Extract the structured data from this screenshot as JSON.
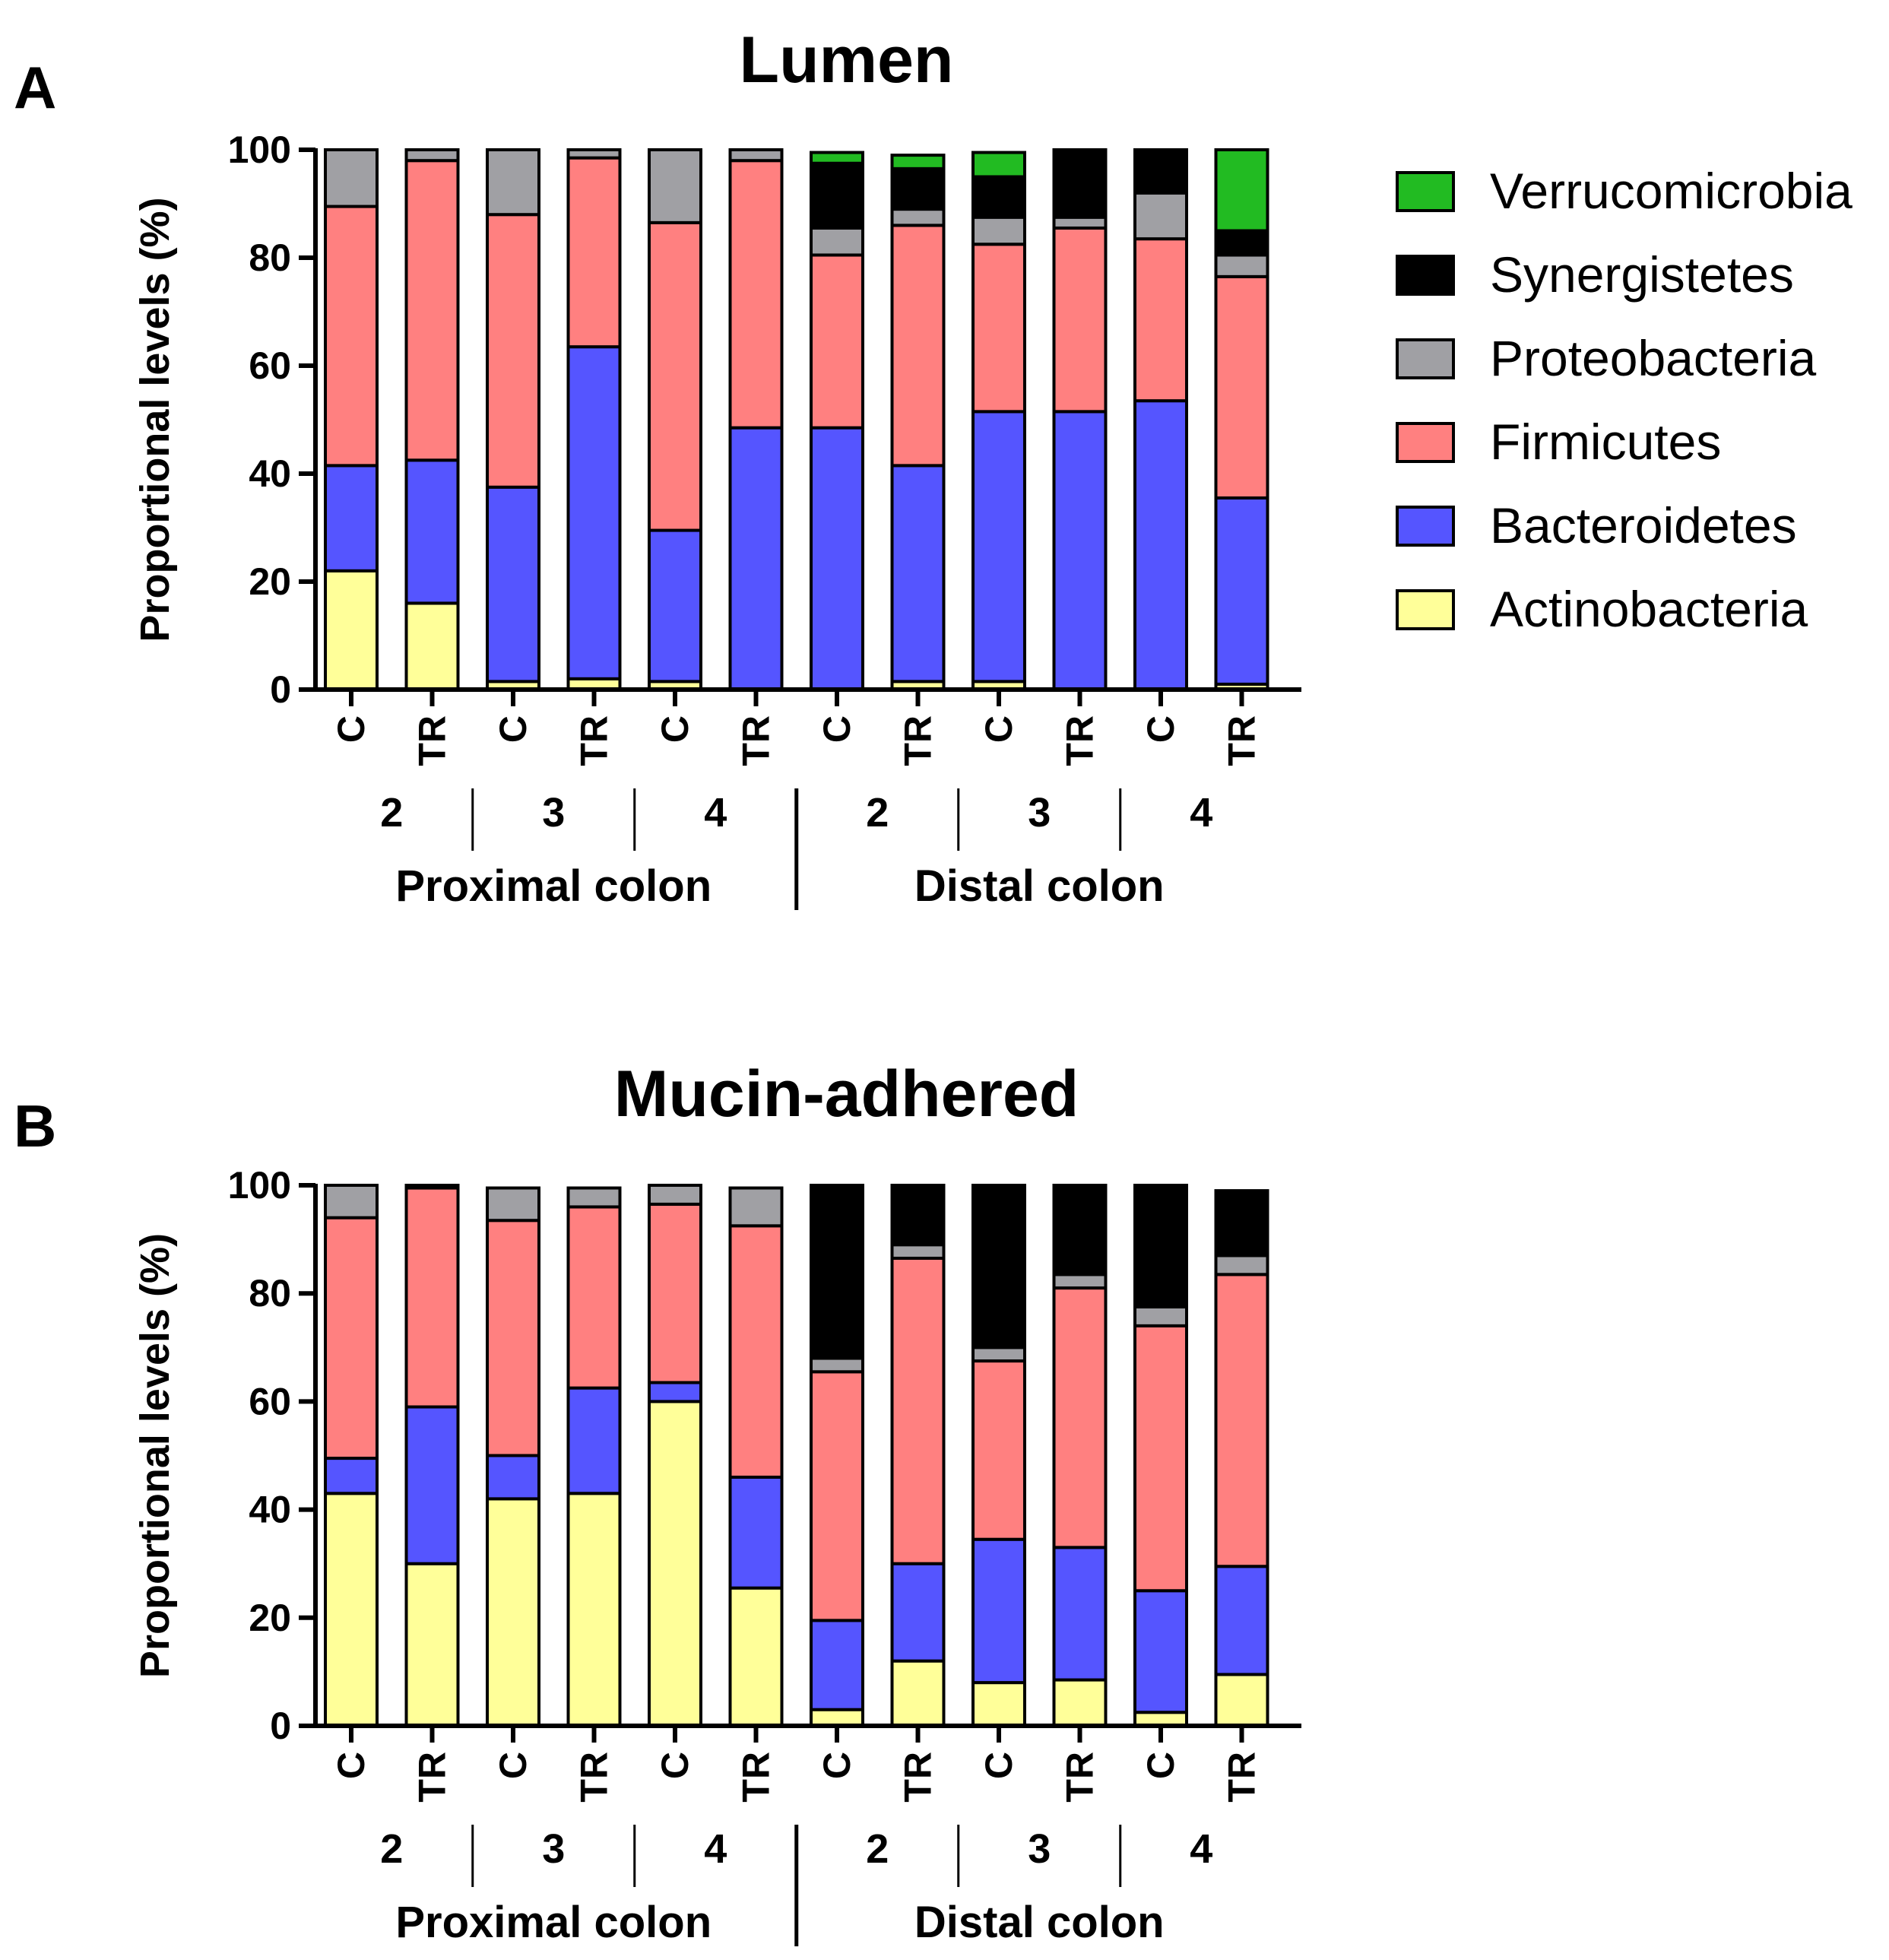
{
  "legend": [
    {
      "key": "verrucomicrobia",
      "label": "Verrucomicrobia",
      "color": "#22bb22"
    },
    {
      "key": "synergistetes",
      "label": "Synergistetes",
      "color": "#000000"
    },
    {
      "key": "proteobacteria",
      "label": "Proteobacteria",
      "color": "#a0a0a4"
    },
    {
      "key": "firmicutes",
      "label": "Firmicutes",
      "color": "#ff8080"
    },
    {
      "key": "bacteroidetes",
      "label": "Bacteroidetes",
      "color": "#5555ff"
    },
    {
      "key": "actinobacteria",
      "label": "Actinobacteria",
      "color": "#ffff99"
    }
  ],
  "chart_data": [
    {
      "type": "bar",
      "stacked": true,
      "panel": "A",
      "title": "Lumen",
      "ylabel": "Proportional levels (%)",
      "ylim": [
        0,
        100
      ],
      "yticks": [
        "0",
        "20",
        "40",
        "60",
        "80",
        "100"
      ],
      "categories": [
        "C",
        "TR",
        "C",
        "TR",
        "C",
        "TR",
        "C",
        "TR",
        "C",
        "TR",
        "C",
        "TR"
      ],
      "weeks": [
        "2",
        "3",
        "4",
        "2",
        "3",
        "4"
      ],
      "regions": [
        "Proximal colon",
        "Distal colon"
      ],
      "series": [
        {
          "name": "Actinobacteria",
          "values": [
            22,
            16,
            1.5,
            2,
            1.5,
            0,
            0,
            1.5,
            1.5,
            0,
            0,
            1
          ]
        },
        {
          "name": "Bacteroidetes",
          "values": [
            19.5,
            26.5,
            36,
            61.5,
            28,
            48.5,
            48.5,
            40,
            50,
            51.5,
            53.5,
            34.5
          ]
        },
        {
          "name": "Firmicutes",
          "values": [
            48,
            55.5,
            50.5,
            35,
            57,
            49.5,
            32,
            44.5,
            31,
            34,
            30,
            41
          ]
        },
        {
          "name": "Proteobacteria",
          "values": [
            10.5,
            2,
            12,
            1.5,
            13.5,
            2,
            5,
            3,
            5,
            2,
            8.5,
            4
          ]
        },
        {
          "name": "Synergistetes",
          "values": [
            0,
            0,
            0,
            0,
            0,
            0,
            12,
            7.5,
            7.5,
            12.5,
            8,
            4.5
          ]
        },
        {
          "name": "Verrucomicrobia",
          "values": [
            0,
            0,
            0,
            0,
            0,
            0,
            2,
            2.5,
            4.5,
            0,
            0,
            15
          ]
        }
      ]
    },
    {
      "type": "bar",
      "stacked": true,
      "panel": "B",
      "title": "Mucin-adhered",
      "ylabel": "Proportional levels (%)",
      "ylim": [
        0,
        100
      ],
      "yticks": [
        "0",
        "20",
        "40",
        "60",
        "80",
        "100"
      ],
      "categories": [
        "C",
        "TR",
        "C",
        "TR",
        "C",
        "TR",
        "C",
        "TR",
        "C",
        "TR",
        "C",
        "TR"
      ],
      "weeks": [
        "2",
        "3",
        "4",
        "2",
        "3",
        "4"
      ],
      "regions": [
        "Proximal colon",
        "Distal colon"
      ],
      "series": [
        {
          "name": "Actinobacteria",
          "values": [
            43,
            30,
            42,
            43,
            60,
            25.5,
            3,
            12,
            8,
            8.5,
            2.5,
            9.5
          ]
        },
        {
          "name": "Bacteroidetes",
          "values": [
            6.5,
            29,
            8,
            19.5,
            3.5,
            20.5,
            16.5,
            18,
            26.5,
            24.5,
            22.5,
            20
          ]
        },
        {
          "name": "Firmicutes",
          "values": [
            44.5,
            40.5,
            43.5,
            33.5,
            33,
            46.5,
            46,
            56.5,
            33,
            48,
            49,
            54
          ]
        },
        {
          "name": "Proteobacteria",
          "values": [
            6,
            0.5,
            6,
            3.5,
            3.5,
            7,
            2.5,
            2.5,
            2.5,
            2.5,
            3.5,
            3.5
          ]
        },
        {
          "name": "Synergistetes",
          "values": [
            0,
            0,
            0,
            0,
            0,
            0,
            32,
            11,
            30,
            16.5,
            22.5,
            11.5
          ]
        },
        {
          "name": "Verrucomicrobia",
          "values": [
            0,
            0,
            0,
            0,
            0,
            0,
            0,
            0,
            0,
            0,
            0,
            0.5
          ]
        }
      ]
    }
  ]
}
